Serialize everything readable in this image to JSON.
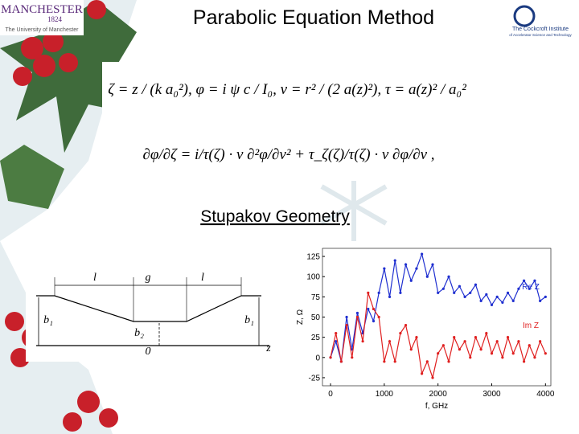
{
  "header": {
    "title": "Parabolic Equation Method",
    "logo_left": {
      "name": "MANCHESTER",
      "year": "1824",
      "subtitle": "The University of Manchester"
    },
    "logo_right": {
      "name": "The Cockcroft Institute",
      "subtitle": "of Accelerator Science and Technology"
    }
  },
  "equations": [
    "ζ = z / (k a₀²),   φ = i ψ c / I₀,   v = r² / (2 a(z)²),   τ = a(z)² / a₀²",
    "∂φ/∂ζ = i/τ(ζ) · v ∂²φ/∂v² + τ_ζ(ζ)/τ(ζ) · v ∂φ/∂v ,"
  ],
  "section_title": "Stupakov Geometry",
  "diagram": {
    "labels": [
      "l",
      "g",
      "l",
      "b₁",
      "b₂",
      "b₁",
      "0",
      "z"
    ]
  },
  "chart_data": {
    "type": "line",
    "xlabel": "f, GHz",
    "ylabel": "Z, Ω",
    "x": [
      0,
      100,
      200,
      300,
      400,
      500,
      600,
      700,
      800,
      900,
      1000,
      1100,
      1200,
      1300,
      1400,
      1500,
      1600,
      1700,
      1800,
      1900,
      2000,
      2100,
      2200,
      2300,
      2400,
      2500,
      2600,
      2700,
      2800,
      2900,
      3000,
      3100,
      3200,
      3300,
      3400,
      3500,
      3600,
      3700,
      3800,
      3900,
      4000
    ],
    "series": [
      {
        "name": "Re Z",
        "color": "#1f2fd0",
        "values": [
          0,
          20,
          -5,
          50,
          10,
          55,
          30,
          60,
          45,
          80,
          110,
          75,
          120,
          80,
          115,
          95,
          110,
          128,
          100,
          115,
          80,
          85,
          100,
          80,
          88,
          75,
          80,
          90,
          70,
          78,
          65,
          75,
          68,
          80,
          70,
          85,
          95,
          85,
          95,
          70,
          75
        ]
      },
      {
        "name": "Im Z",
        "color": "#e02020",
        "values": [
          0,
          30,
          -5,
          40,
          0,
          50,
          20,
          80,
          60,
          50,
          -5,
          20,
          -5,
          30,
          40,
          10,
          25,
          -20,
          -5,
          -25,
          5,
          15,
          -5,
          25,
          10,
          20,
          0,
          25,
          10,
          30,
          5,
          20,
          0,
          25,
          5,
          20,
          -5,
          15,
          0,
          20,
          5
        ]
      }
    ],
    "xlim": [
      -150,
      4100
    ],
    "ylim": [
      -35,
      135
    ],
    "xticks": [
      0,
      1000,
      2000,
      3000,
      4000
    ],
    "yticks": [
      -25,
      0,
      25,
      50,
      75,
      100,
      125
    ]
  }
}
